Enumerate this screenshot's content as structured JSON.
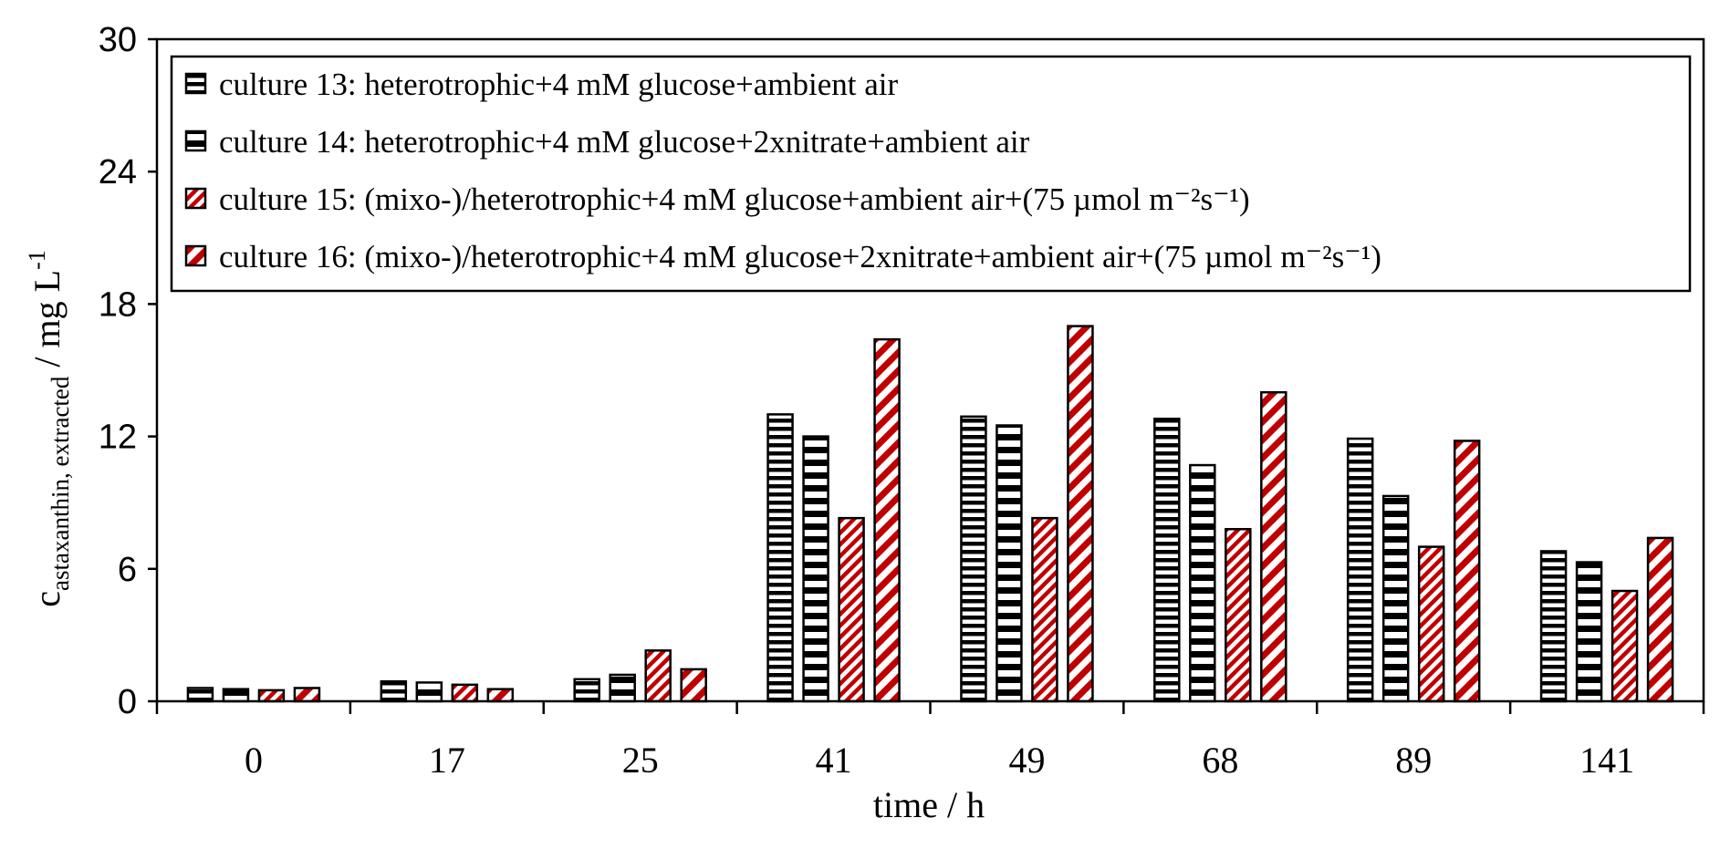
{
  "chart_data": {
    "type": "bar",
    "title": "",
    "xlabel": "time / h",
    "ylabel": {
      "main": "c",
      "subscript": "astaxanthin, extracted",
      "unit": " / mg L",
      "unit_superscript": "-1"
    },
    "ylim": [
      0,
      30
    ],
    "yticks": [
      0,
      6,
      12,
      18,
      24,
      30
    ],
    "categories": [
      "0",
      "17",
      "25",
      "41",
      "49",
      "68",
      "89",
      "141"
    ],
    "legend_position": "top-left inside",
    "series": [
      {
        "name": "culture 13: heterotrophic+4 mM glucose+ambient air",
        "color": "#000000",
        "pattern": "thin-horizontal-stripes",
        "values": [
          0.6,
          0.9,
          1.0,
          13.0,
          12.9,
          12.8,
          11.9,
          6.8
        ]
      },
      {
        "name": "culture 14: heterotrophic+4 mM glucose+2xnitrate+ambient air",
        "color": "#000000",
        "pattern": "wide-horizontal-stripes",
        "values": [
          0.55,
          0.85,
          1.2,
          12.0,
          12.5,
          10.7,
          9.3,
          6.3
        ]
      },
      {
        "name": "culture 15: (mixo-)/heterotrophic+4 mM glucose+ambient air+(75 µmol m⁻²s⁻¹)",
        "color": "#c00000",
        "pattern": "thin-diagonal-stripes",
        "values": [
          0.5,
          0.75,
          2.3,
          8.3,
          8.3,
          7.8,
          7.0,
          5.0
        ]
      },
      {
        "name": "culture 16: (mixo-)/heterotrophic+4 mM glucose+2xnitrate+ambient air+(75 µmol m⁻²s⁻¹)",
        "color": "#c00000",
        "pattern": "wide-diagonal-stripes",
        "values": [
          0.6,
          0.55,
          1.45,
          16.4,
          17.0,
          14.0,
          11.8,
          7.4
        ]
      }
    ]
  }
}
